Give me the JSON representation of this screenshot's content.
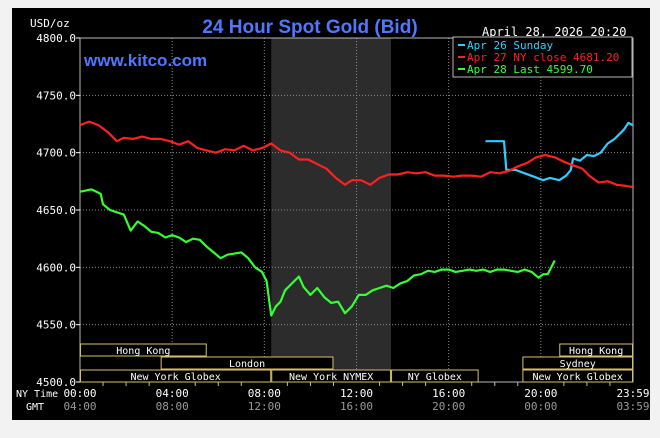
{
  "chart_data": {
    "type": "line",
    "title": "24 Hour Spot Gold (Bid)",
    "watermark": "www.kitco.com",
    "ylabel": "USD/oz",
    "date_stamp": "April 28, 2026 20:20",
    "ylim": [
      4500,
      4800
    ],
    "y_ticks": [
      "4800.0",
      "4750.0",
      "4700.0",
      "4650.0",
      "4600.0",
      "4550.0",
      "4500.0"
    ],
    "y_tick_values": [
      4800,
      4750,
      4700,
      4650,
      4600,
      4550,
      4500
    ],
    "xlim": [
      0,
      24
    ],
    "x_row_labels": {
      "ny": "NY Time",
      "gmt": "GMT"
    },
    "x_ticks_ny": [
      "00:00",
      "04:00",
      "08:00",
      "12:00",
      "16:00",
      "20:00",
      "23:59"
    ],
    "x_ticks_gmt": [
      "04:00",
      "08:00",
      "12:00",
      "16:00",
      "20:00",
      "00:00",
      "03:59"
    ],
    "x_tick_hours": [
      0,
      4,
      8,
      12,
      16,
      20,
      24
    ],
    "legend": {
      "position": "top-right",
      "items": [
        {
          "label": "Apr 26 Sunday",
          "color": "#33ccff"
        },
        {
          "label": "Apr 27 NY close 4681.20",
          "color": "#ff2020"
        },
        {
          "label": "Apr 28 Last 4599.70",
          "color": "#33ff33"
        }
      ]
    },
    "shaded_region_hours": [
      8.3,
      13.5
    ],
    "sessions": [
      {
        "label": "Hong Kong",
        "start": 0,
        "end": 5.5,
        "row": 0
      },
      {
        "label": "London",
        "start": 3.5,
        "end": 11,
        "row": 1
      },
      {
        "label": "New York Globex",
        "start": 0,
        "end": 8.3,
        "row": 2
      },
      {
        "label": "New York NYMEX",
        "start": 8.3,
        "end": 13.5,
        "row": 2
      },
      {
        "label": "NY Globex",
        "start": 13.5,
        "end": 17.3,
        "row": 2
      },
      {
        "label": "Hong Kong",
        "start": 20.8,
        "end": 24,
        "row": 0
      },
      {
        "label": "Sydney",
        "start": 19.2,
        "end": 24,
        "row": 1
      },
      {
        "label": "New York Globex",
        "start": 19.2,
        "end": 24,
        "row": 2
      }
    ],
    "series": [
      {
        "name": "Apr 26 Sunday",
        "color": "#33ccff",
        "x": [
          17.6,
          18.4,
          18.5,
          18.9,
          19.3,
          19.7,
          20.1,
          20.4,
          20.8,
          21.1,
          21.3,
          21.4,
          21.7,
          22.0,
          22.3,
          22.6,
          22.9,
          23.2,
          23.4,
          23.6,
          23.8,
          23.99
        ],
        "y": [
          4710,
          4710,
          4685,
          4685,
          4682,
          4679,
          4676,
          4678,
          4676,
          4680,
          4685,
          4695,
          4693,
          4698,
          4697,
          4700,
          4708,
          4712,
          4716,
          4720,
          4726,
          4724
        ]
      },
      {
        "name": "Apr 27 NY close 4681.20",
        "color": "#ff2020",
        "x": [
          0,
          0.4,
          0.8,
          1.2,
          1.6,
          1.9,
          2.3,
          2.7,
          3.1,
          3.5,
          3.9,
          4.3,
          4.7,
          5.1,
          5.5,
          5.9,
          6.3,
          6.7,
          7.1,
          7.5,
          7.9,
          8.3,
          8.7,
          9.1,
          9.5,
          9.9,
          10.3,
          10.7,
          11.1,
          11.5,
          11.8,
          12.2,
          12.6,
          13.0,
          13.4,
          13.8,
          14.2,
          14.6,
          15.0,
          15.4,
          15.8,
          16.2,
          16.6,
          17.0,
          17.4,
          17.8,
          18.2,
          18.6,
          19.0,
          19.4,
          19.8,
          20.2,
          20.6,
          21.0,
          21.4,
          21.8,
          22.1,
          22.5,
          22.9,
          23.3,
          23.7,
          23.99
        ],
        "y": [
          4724,
          4727,
          4724,
          4718,
          4710,
          4713,
          4712,
          4714,
          4712,
          4712,
          4710,
          4707,
          4710,
          4704,
          4702,
          4700,
          4703,
          4702,
          4706,
          4702,
          4704,
          4708,
          4702,
          4700,
          4694,
          4694,
          4690,
          4686,
          4678,
          4672,
          4676,
          4676,
          4672,
          4678,
          4681,
          4681,
          4683,
          4682,
          4683,
          4680,
          4680,
          4679,
          4680,
          4680,
          4679,
          4683,
          4682,
          4684,
          4688,
          4691,
          4696,
          4698,
          4696,
          4692,
          4689,
          4686,
          4680,
          4674,
          4675,
          4672,
          4671,
          4670
        ]
      },
      {
        "name": "Apr 28 Last 4599.70",
        "color": "#33ff33",
        "x": [
          0,
          0.5,
          0.9,
          1.0,
          1.3,
          1.6,
          1.9,
          2.2,
          2.5,
          2.8,
          3.1,
          3.4,
          3.7,
          4.0,
          4.3,
          4.6,
          4.9,
          5.2,
          5.5,
          5.8,
          6.1,
          6.4,
          6.7,
          7.0,
          7.3,
          7.6,
          7.9,
          8.1,
          8.3,
          8.5,
          8.7,
          8.9,
          9.2,
          9.5,
          9.7,
          10.0,
          10.3,
          10.6,
          10.9,
          11.2,
          11.5,
          11.8,
          12.1,
          12.4,
          12.7,
          13.0,
          13.3,
          13.6,
          13.9,
          14.2,
          14.5,
          14.8,
          15.1,
          15.4,
          15.7,
          16.0,
          16.3,
          16.6,
          16.9,
          17.2,
          17.5,
          17.8,
          18.1,
          18.4,
          18.7,
          19.0,
          19.3,
          19.6,
          19.9,
          20.1,
          20.3,
          20.6
        ],
        "y": [
          4666,
          4668,
          4664,
          4655,
          4650,
          4648,
          4646,
          4632,
          4640,
          4636,
          4631,
          4630,
          4626,
          4628,
          4626,
          4622,
          4625,
          4624,
          4618,
          4613,
          4608,
          4611,
          4612,
          4613,
          4608,
          4600,
          4596,
          4588,
          4558,
          4566,
          4570,
          4580,
          4586,
          4592,
          4583,
          4576,
          4582,
          4574,
          4569,
          4570,
          4560,
          4566,
          4576,
          4576,
          4580,
          4582,
          4584,
          4582,
          4586,
          4588,
          4593,
          4594,
          4597,
          4596,
          4598,
          4598,
          4596,
          4597,
          4598,
          4597,
          4598,
          4596,
          4598,
          4598,
          4597,
          4596,
          4598,
          4596,
          4591,
          4594,
          4594,
          4606
        ]
      }
    ]
  }
}
